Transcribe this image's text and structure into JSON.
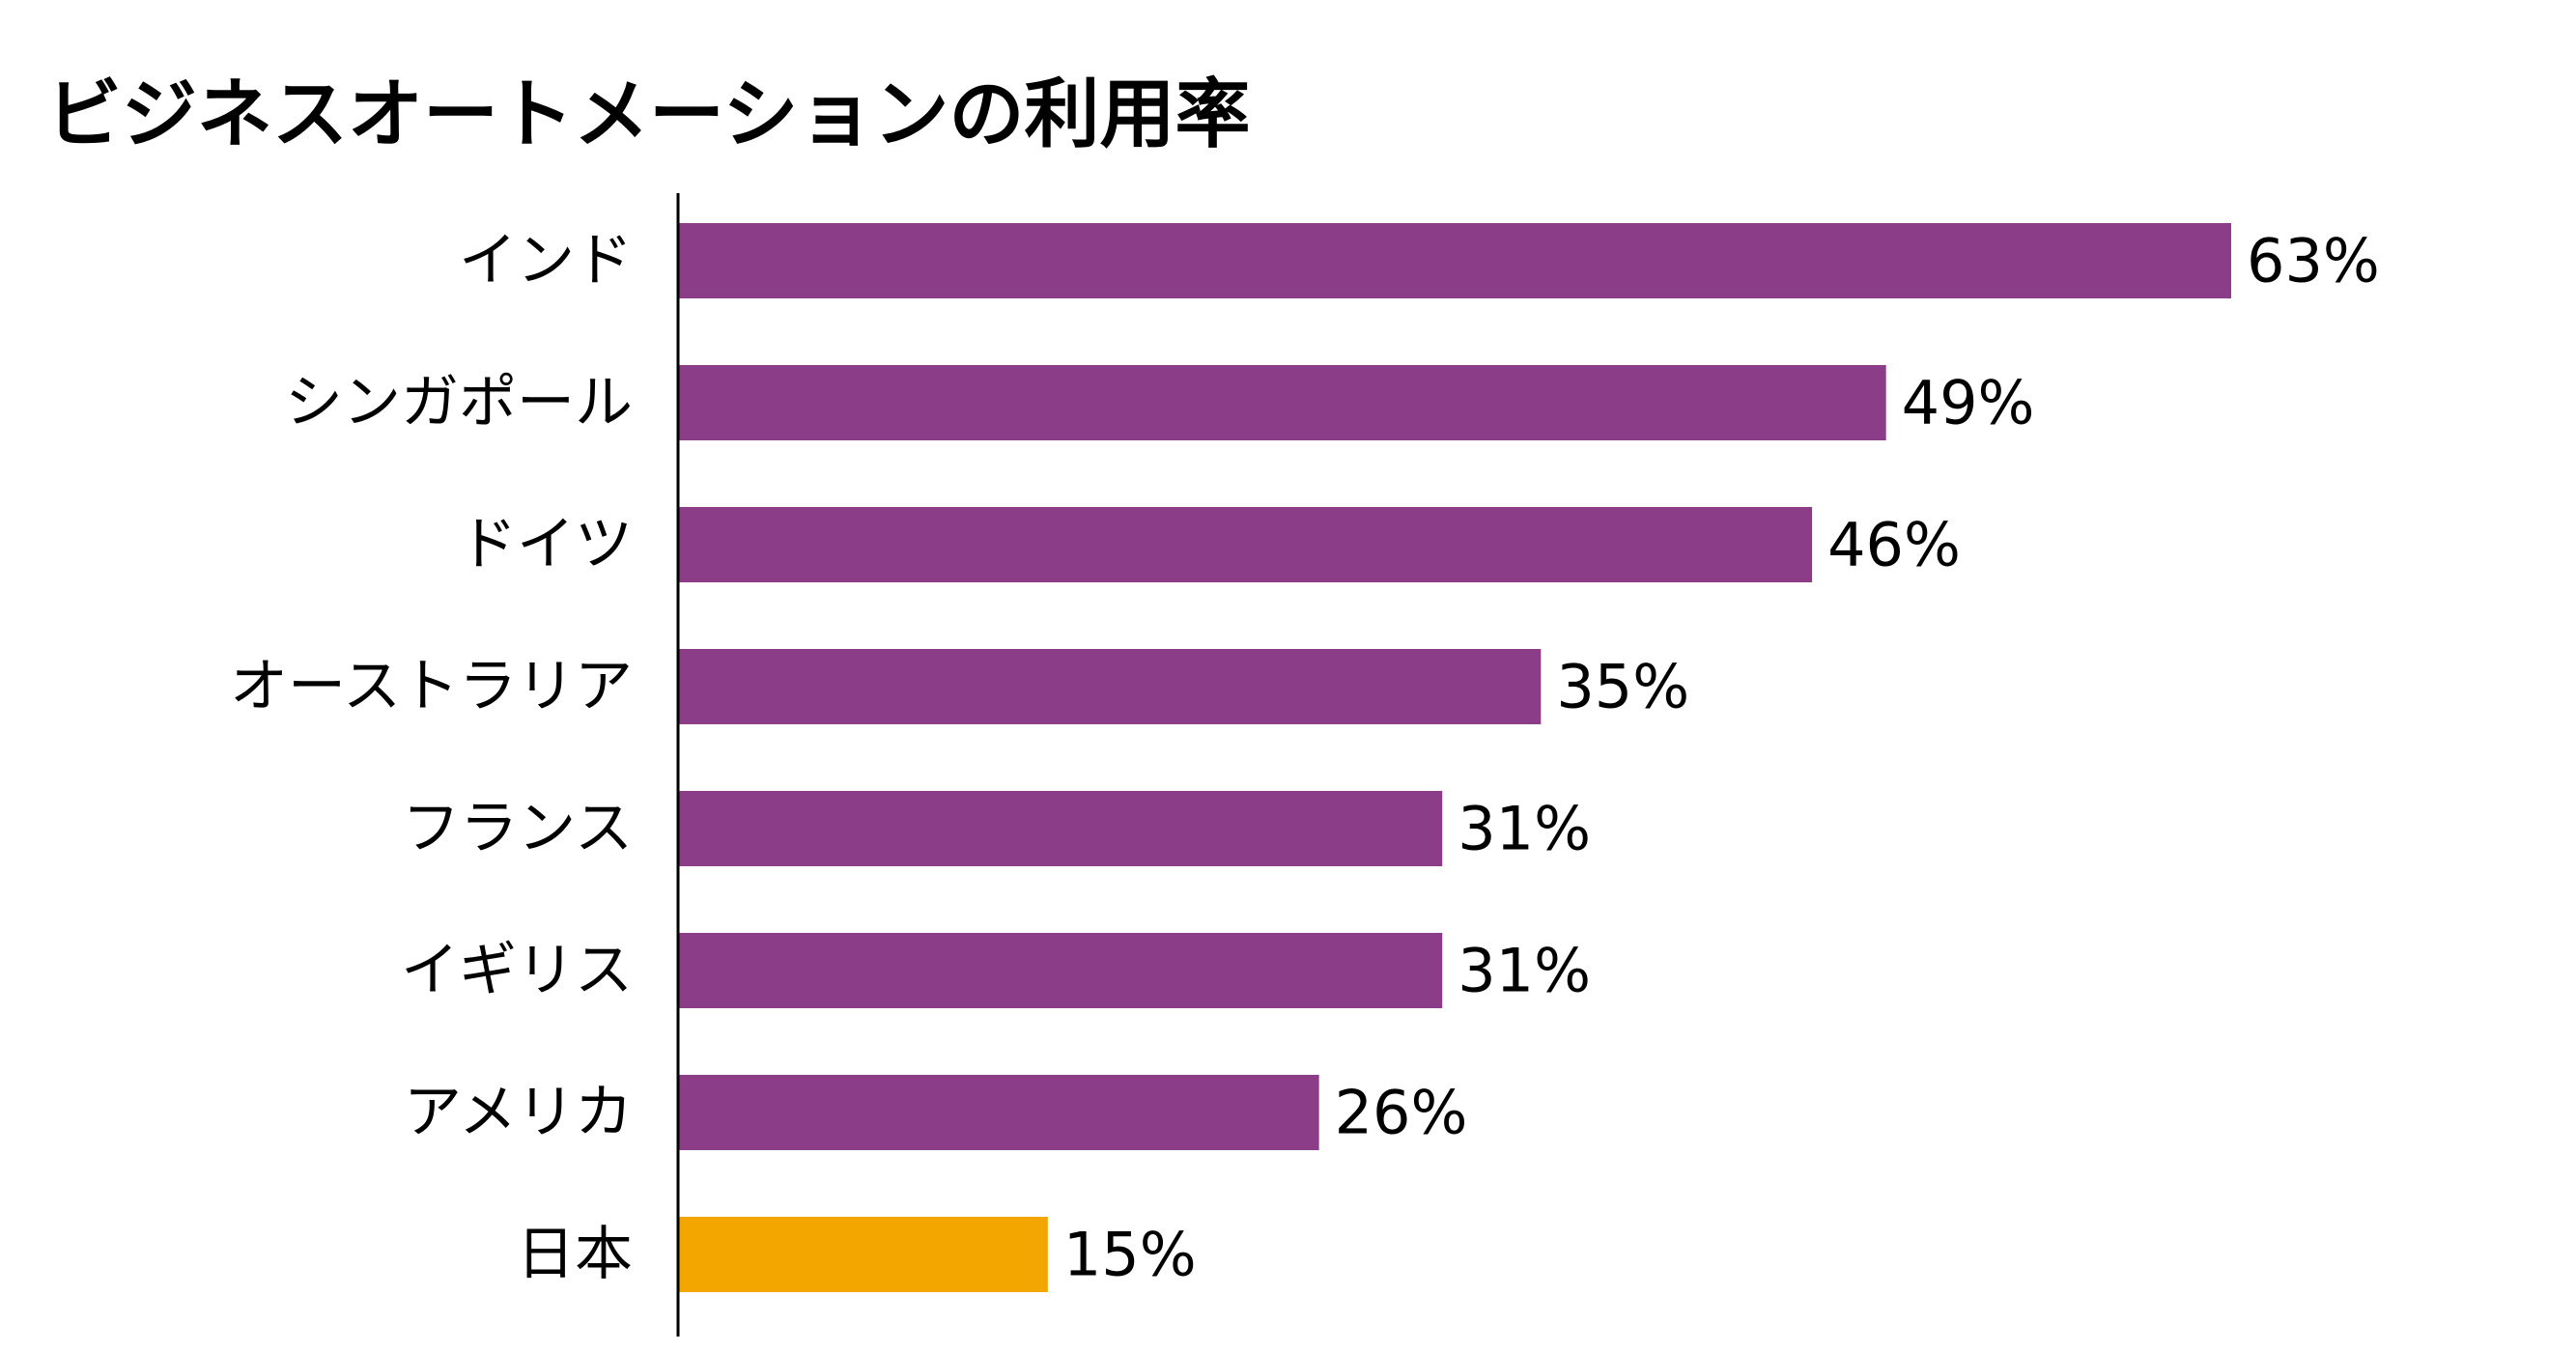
{
  "chart_data": {
    "type": "bar",
    "orientation": "horizontal",
    "title": "ビジネスオートメーションの利用率",
    "categories": [
      "インド",
      "シンガポール",
      "ドイツ",
      "オーストラリア",
      "フランス",
      "イギリス",
      "アメリカ",
      "日本"
    ],
    "values": [
      63,
      49,
      46,
      35,
      31,
      31,
      26,
      15
    ],
    "value_labels": [
      "63%",
      "49%",
      "46%",
      "35%",
      "31%",
      "31%",
      "26%",
      "15%"
    ],
    "unit": "%",
    "xlim": [
      0,
      100
    ],
    "grid": false,
    "legend": "none",
    "colors": {
      "default_bar": "#8b3d87",
      "highlight_bar": "#f3a600",
      "highlight_category": "日本",
      "axis": "#000000",
      "text": "#000000"
    }
  }
}
